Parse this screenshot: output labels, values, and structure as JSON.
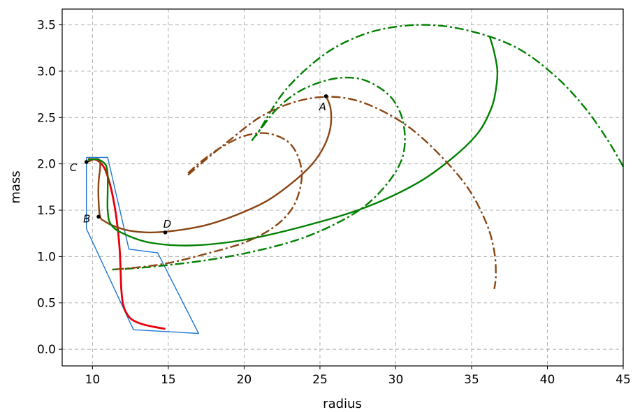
{
  "chart_data": {
    "type": "line",
    "xlabel": "radius",
    "ylabel": "mass",
    "xlim": [
      8.0,
      45.0
    ],
    "ylim": [
      -0.18,
      3.67
    ],
    "grid": true,
    "xticks": [
      10,
      15,
      20,
      25,
      30,
      35,
      40,
      45
    ],
    "yticks": [
      0.0,
      0.5,
      1.0,
      1.5,
      2.0,
      2.5,
      3.0,
      3.5
    ],
    "xtick_labels": [
      "10",
      "15",
      "20",
      "25",
      "30",
      "35",
      "40",
      "45"
    ],
    "ytick_labels": [
      "0.0",
      "0.5",
      "1.0",
      "1.5",
      "2.0",
      "2.5",
      "3.0",
      "3.5"
    ],
    "series": [
      {
        "color": "#1f77d4",
        "style": "solid",
        "width": 1.4,
        "x": [
          9.6,
          11.0,
          12.4,
          14.3,
          17.0,
          12.7,
          9.6,
          9.6
        ],
        "y": [
          2.07,
          2.07,
          1.08,
          1.04,
          0.17,
          0.21,
          1.3,
          2.07
        ]
      },
      {
        "color": "#e8000b",
        "style": "solid",
        "width": 2.8,
        "x": [
          9.7,
          10.3,
          10.8,
          11.2,
          11.5,
          11.7,
          11.8,
          11.85,
          11.9,
          12.0,
          12.2,
          12.6,
          13.3,
          14.1,
          14.8
        ],
        "y": [
          2.05,
          2.04,
          1.95,
          1.75,
          1.5,
          1.25,
          1.05,
          0.85,
          0.65,
          0.5,
          0.4,
          0.32,
          0.27,
          0.24,
          0.22
        ]
      },
      {
        "color": "#8b4513",
        "style": "solid",
        "width": 2.4,
        "x": [
          25.4,
          25.7,
          25.7,
          25.3,
          24.5,
          23.2,
          21.5,
          19.5,
          17.5,
          15.5,
          13.8,
          12.4,
          11.4,
          10.8,
          10.5,
          10.4,
          10.4,
          10.5,
          10.5,
          10.4,
          10.1,
          9.8,
          9.6
        ],
        "y": [
          2.73,
          2.6,
          2.4,
          2.2,
          2.0,
          1.8,
          1.6,
          1.45,
          1.34,
          1.28,
          1.26,
          1.28,
          1.33,
          1.38,
          1.43,
          1.6,
          1.8,
          1.95,
          2.02,
          2.05,
          2.05,
          2.03,
          2.02
        ]
      },
      {
        "color": "#008000",
        "style": "solid",
        "width": 2.4,
        "x": [
          36.2,
          36.5,
          36.7,
          36.6,
          36.3,
          35.5,
          34.0,
          31.5,
          28.0,
          24.0,
          20.0,
          16.5,
          13.8,
          12.0,
          11.2,
          11.0,
          11.0,
          11.0,
          10.9,
          10.6,
          10.2,
          9.9,
          9.7
        ],
        "y": [
          3.37,
          3.2,
          3.0,
          2.8,
          2.6,
          2.35,
          2.1,
          1.8,
          1.53,
          1.33,
          1.18,
          1.12,
          1.15,
          1.25,
          1.35,
          1.5,
          1.7,
          1.88,
          1.98,
          2.03,
          2.05,
          2.05,
          2.04
        ]
      },
      {
        "color": "#008000",
        "style": "dashdot",
        "width": 2.4,
        "x": [
          45.0,
          44.0,
          42.5,
          40.5,
          38.0,
          35.0,
          32.0,
          29.0,
          26.5,
          24.5,
          22.5,
          20.8
        ],
        "y": [
          1.97,
          2.25,
          2.6,
          2.95,
          3.25,
          3.43,
          3.5,
          3.45,
          3.3,
          3.08,
          2.75,
          2.3
        ]
      },
      {
        "color": "#008000",
        "style": "dashdot",
        "width": 2.4,
        "x": [
          20.5,
          21.2,
          22.2,
          23.5,
          25.0,
          26.5,
          28.0,
          29.5,
          30.3,
          30.6,
          30.4,
          29.5,
          28.0,
          26.0,
          23.5,
          20.5,
          17.5,
          14.5,
          12.5,
          11.3
        ],
        "y": [
          2.25,
          2.4,
          2.6,
          2.77,
          2.88,
          2.93,
          2.9,
          2.75,
          2.55,
          2.3,
          2.05,
          1.8,
          1.55,
          1.35,
          1.18,
          1.05,
          0.96,
          0.9,
          0.87,
          0.86
        ]
      },
      {
        "color": "#8b4513",
        "style": "dashdot",
        "width": 2.4,
        "x": [
          16.3,
          17.5,
          19.0,
          21.0,
          23.0,
          25.0,
          27.0,
          29.0,
          31.0,
          33.0,
          34.8,
          36.0,
          36.5,
          36.6,
          36.5
        ],
        "y": [
          1.88,
          2.05,
          2.25,
          2.5,
          2.65,
          2.72,
          2.7,
          2.58,
          2.38,
          2.08,
          1.73,
          1.35,
          1.05,
          0.8,
          0.65
        ]
      },
      {
        "color": "#8b4513",
        "style": "dashdot",
        "width": 2.4,
        "x": [
          16.3,
          17.2,
          18.5,
          20.0,
          21.5,
          22.8,
          23.5,
          23.8,
          23.6,
          23.0,
          21.8,
          20.0,
          17.5,
          15.0,
          12.8,
          11.3
        ],
        "y": [
          1.9,
          2.03,
          2.18,
          2.3,
          2.33,
          2.25,
          2.1,
          1.9,
          1.68,
          1.48,
          1.3,
          1.15,
          1.03,
          0.93,
          0.88,
          0.86
        ]
      }
    ],
    "points": [
      {
        "label": "A",
        "x": 25.4,
        "y": 2.73
      },
      {
        "label": "B",
        "x": 10.4,
        "y": 1.43
      },
      {
        "label": "C",
        "x": 9.6,
        "y": 2.02
      },
      {
        "label": "D",
        "x": 14.8,
        "y": 1.26
      }
    ]
  }
}
